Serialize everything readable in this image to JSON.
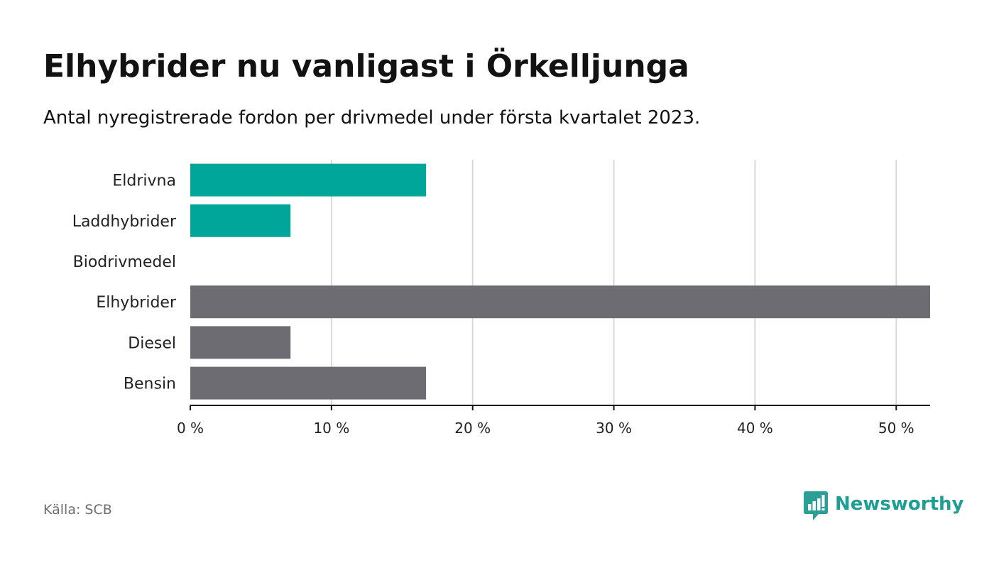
{
  "header": {
    "title": "Elhybrider nu vanligast i Örkelljunga",
    "subtitle": "Antal nyregistrerade fordon per drivmedel under första kvartalet 2023."
  },
  "footer": {
    "source": "Källa: SCB",
    "brand": "Newsworthy"
  },
  "colors": {
    "highlight": "#00a69a",
    "default": "#6d6c73",
    "grid": "#d9d9d9",
    "axis": "#121212",
    "brand": "#1f9f94"
  },
  "chart_data": {
    "type": "bar",
    "orientation": "horizontal",
    "categories": [
      "Eldrivna",
      "Laddhybrider",
      "Biodrivmedel",
      "Elhybrider",
      "Diesel",
      "Bensin"
    ],
    "values": [
      16.7,
      7.1,
      0,
      52.4,
      7.1,
      16.7
    ],
    "bar_colors": [
      "#00a69a",
      "#00a69a",
      "#6d6c73",
      "#6d6c73",
      "#6d6c73",
      "#6d6c73"
    ],
    "xlim": [
      0,
      52.4
    ],
    "xticks": [
      0,
      10,
      20,
      30,
      40,
      50
    ],
    "xtick_labels": [
      "0 %",
      "10 %",
      "20 %",
      "30 %",
      "40 %",
      "50 %"
    ],
    "grid": true,
    "legend": false
  }
}
